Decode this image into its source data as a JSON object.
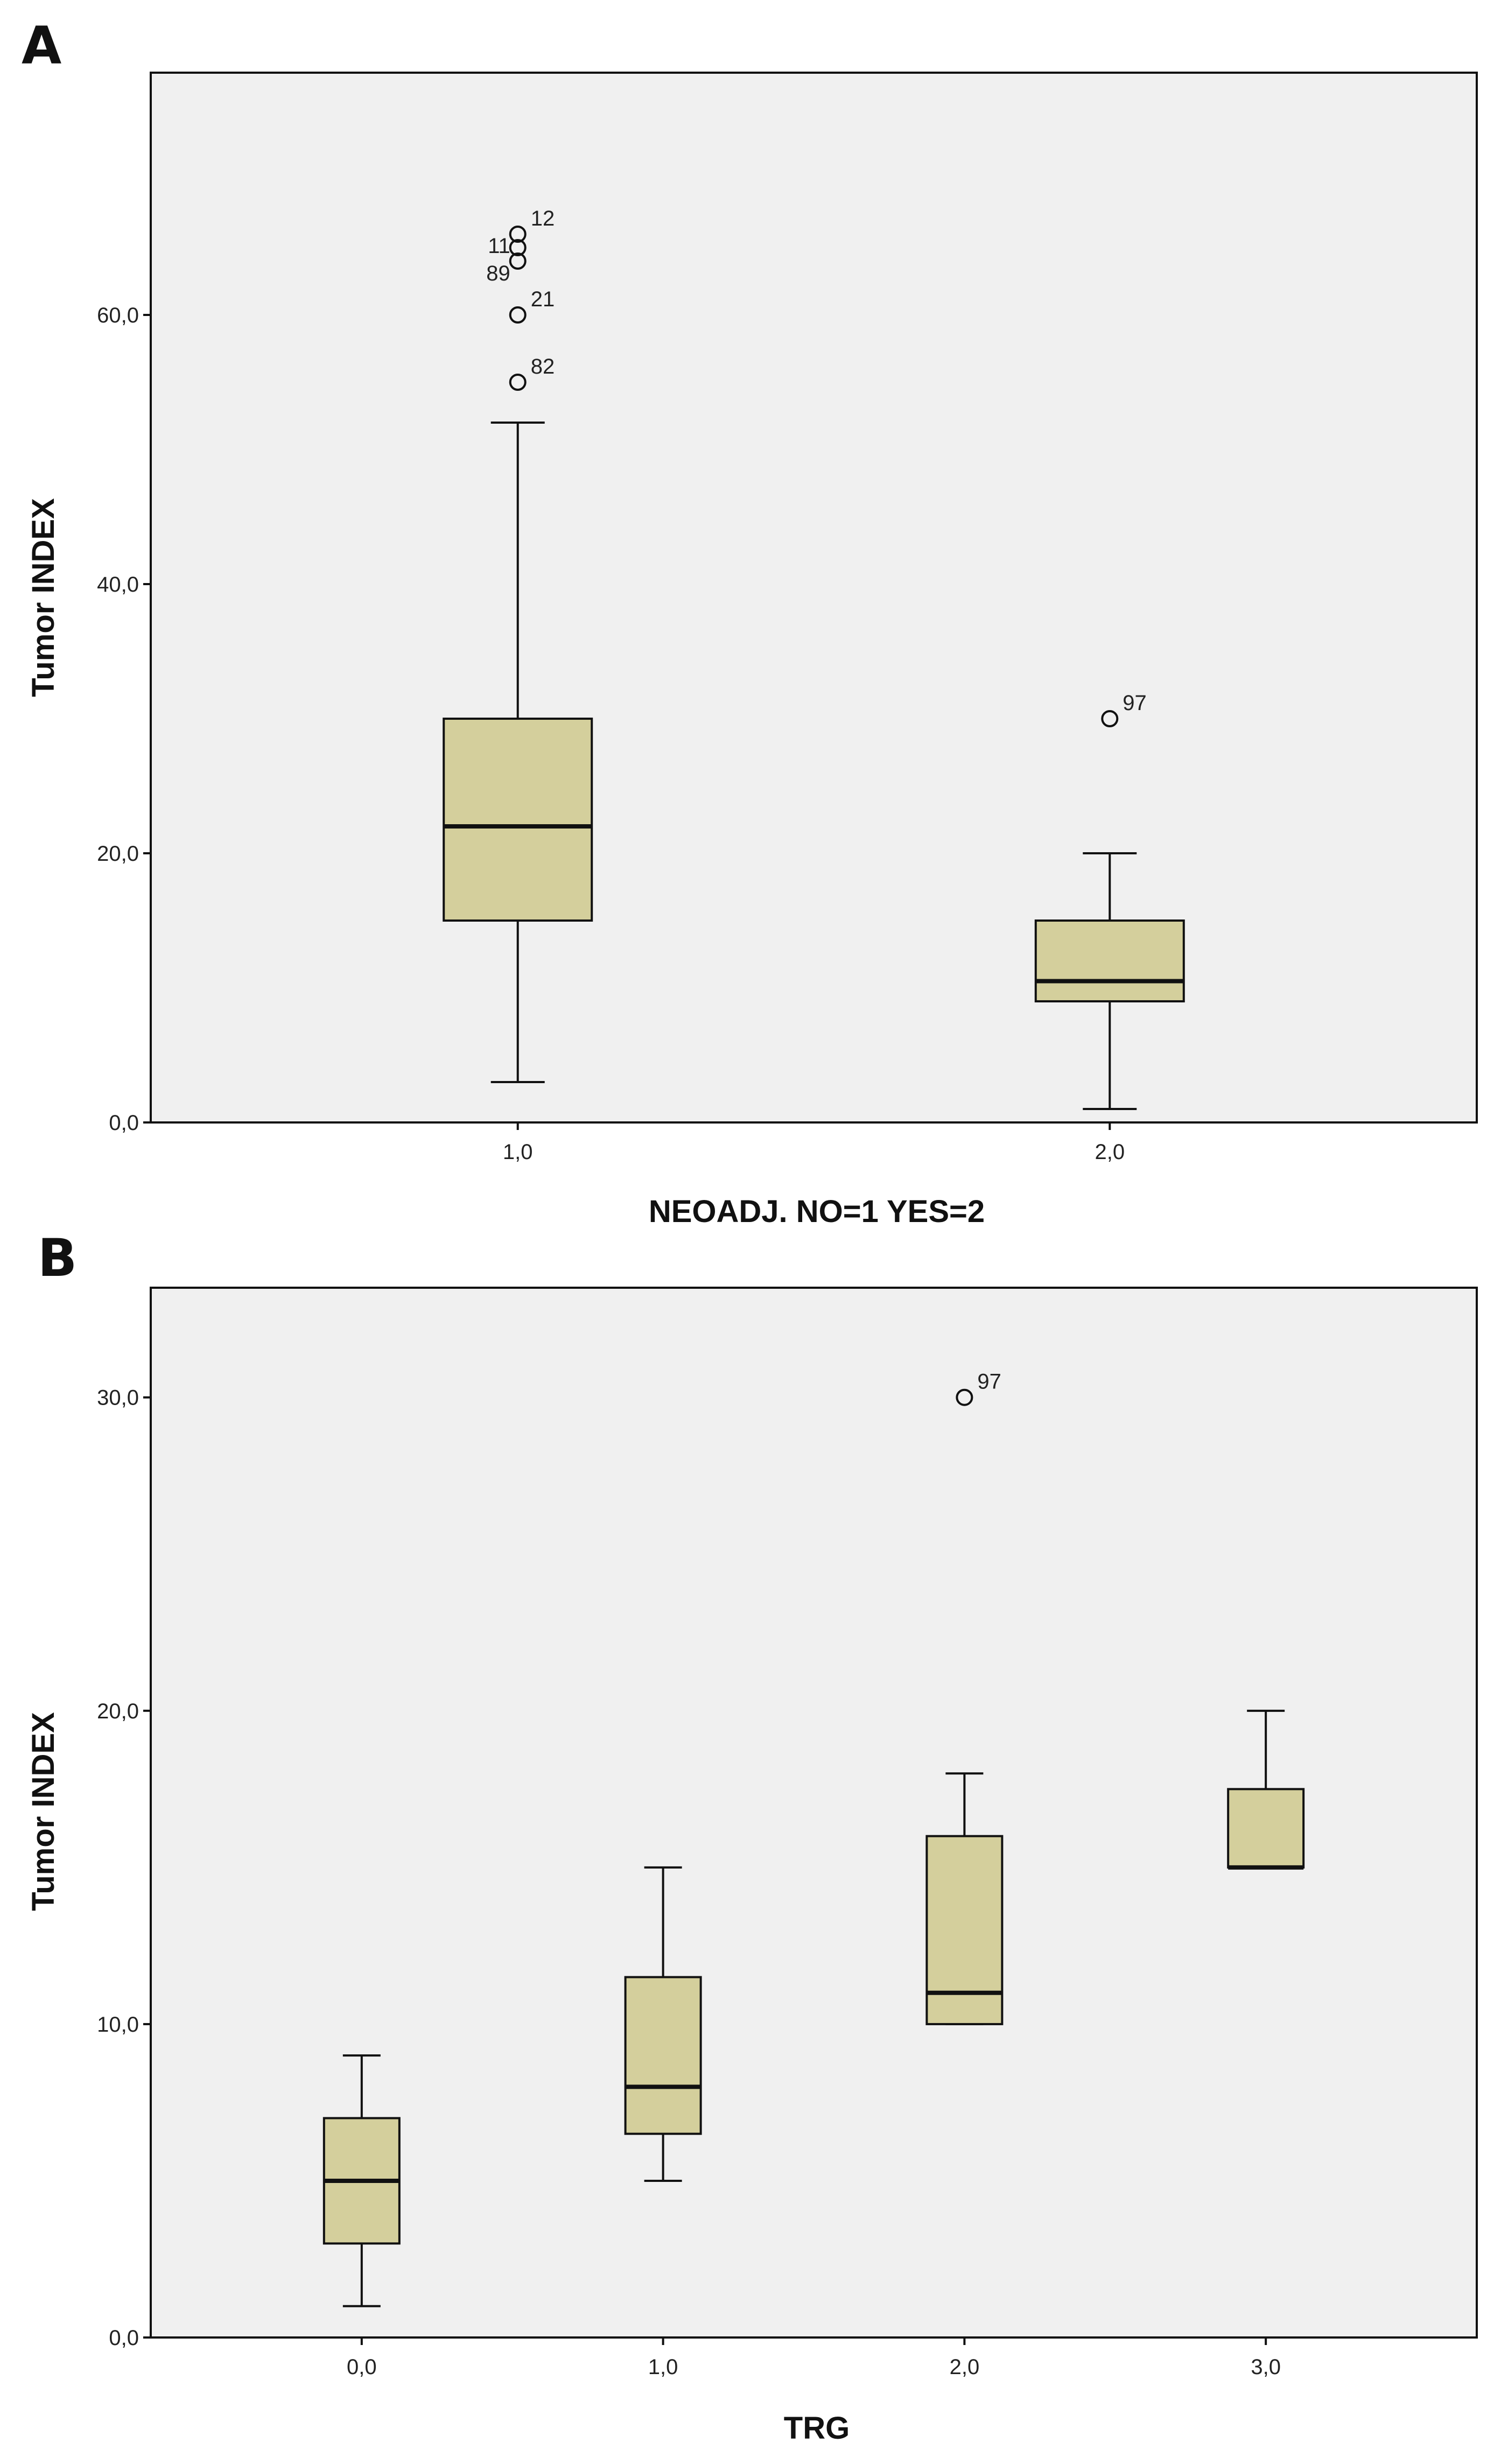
{
  "chart_data": [
    {
      "type": "box",
      "panel": "A",
      "xlabel": "NEOADJ. NO=1 YES=2",
      "ylabel": "Tumor INDEX",
      "ylim": [
        0,
        78
      ],
      "yticks": [
        {
          "value": 0,
          "label": "0,0"
        },
        {
          "value": 20,
          "label": "20,0"
        },
        {
          "value": 40,
          "label": "40,0"
        },
        {
          "value": 60,
          "label": "60,0"
        }
      ],
      "xlim": [
        0.38,
        2.62
      ],
      "categories": [
        {
          "x": 1,
          "label": "1,0",
          "whisker_low": 3,
          "q1": 15,
          "median": 22,
          "q3": 30,
          "whisker_high": 52,
          "outliers": [
            {
              "value": 66,
              "label": "12"
            },
            {
              "value": 65,
              "label": "11"
            },
            {
              "value": 64,
              "label": "89"
            },
            {
              "value": 60,
              "label": "21"
            },
            {
              "value": 55,
              "label": "82"
            }
          ]
        },
        {
          "x": 2,
          "label": "2,0",
          "whisker_low": 1,
          "q1": 9,
          "median": 10.5,
          "q3": 15,
          "whisker_high": 20,
          "outliers": [
            {
              "value": 30,
              "label": "97"
            }
          ]
        }
      ]
    },
    {
      "type": "box",
      "panel": "B",
      "xlabel": "TRG",
      "ylabel": "Tumor INDEX",
      "ylim": [
        0,
        33.5
      ],
      "yticks": [
        {
          "value": 0,
          "label": "0,0"
        },
        {
          "value": 10,
          "label": "10,0"
        },
        {
          "value": 20,
          "label": "20,0"
        },
        {
          "value": 30,
          "label": "30,0"
        }
      ],
      "xlim": [
        -0.7,
        3.7
      ],
      "categories": [
        {
          "x": 0,
          "label": "0,0",
          "whisker_low": 1,
          "q1": 3,
          "median": 5,
          "q3": 7,
          "whisker_high": 9,
          "outliers": []
        },
        {
          "x": 1,
          "label": "1,0",
          "whisker_low": 5,
          "q1": 6.5,
          "median": 8,
          "q3": 11.5,
          "whisker_high": 15,
          "outliers": []
        },
        {
          "x": 2,
          "label": "2,0",
          "whisker_low": 10,
          "q1": 10,
          "median": 11,
          "q3": 16,
          "whisker_high": 18,
          "outliers": [
            {
              "value": 30,
              "label": "97"
            }
          ]
        },
        {
          "x": 3,
          "label": "3,0",
          "whisker_low": 15,
          "q1": 15,
          "median": 15,
          "q3": 17.5,
          "whisker_high": 20,
          "outliers": []
        }
      ]
    }
  ],
  "style": {
    "box_fill": "#d4cf9c",
    "plot_background": "#f0f0f0",
    "line_color": "#111111"
  }
}
